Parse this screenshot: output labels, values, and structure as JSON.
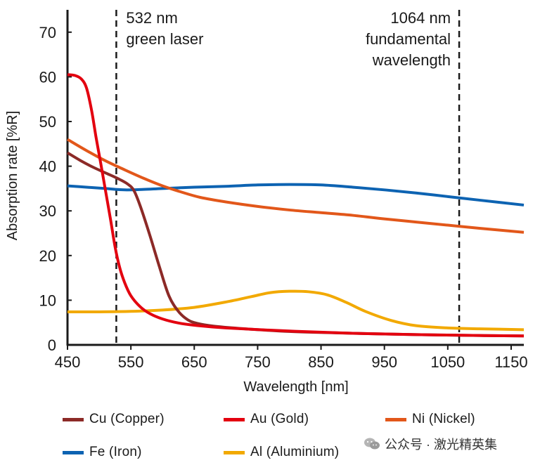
{
  "chart_data": {
    "type": "line",
    "xlabel": "Wavelength [nm]",
    "ylabel": "Absorption rate [%R]",
    "xlim": [
      450,
      1170
    ],
    "ylim": [
      0,
      75
    ],
    "xticks": [
      450,
      550,
      650,
      750,
      850,
      950,
      1050,
      1150
    ],
    "yticks": [
      0,
      10,
      20,
      30,
      40,
      50,
      60,
      70
    ],
    "grid": false,
    "legend_position": "bottom",
    "annotations": [
      {
        "x": 527,
        "line1": "532 nm",
        "line2": "green laser",
        "line3": ""
      },
      {
        "x": 1068,
        "line1": "1064 nm",
        "line2": "fundamental",
        "line3": "wavelength"
      }
    ],
    "series": [
      {
        "name": "Cu (Copper)",
        "color": "#8c2a27",
        "x": [
          450,
          470,
          490,
          510,
          530,
          545,
          555,
          565,
          580,
          595,
          610,
          625,
          640,
          655,
          680,
          720,
          800,
          900,
          1000,
          1100,
          1170
        ],
        "y": [
          43,
          41.3,
          39.8,
          38.5,
          37.2,
          36,
          34.5,
          31,
          24.5,
          17.5,
          11,
          7.5,
          5.6,
          4.8,
          4.2,
          3.7,
          3,
          2.6,
          2.3,
          2.1,
          2
        ]
      },
      {
        "name": "Au (Gold)",
        "color": "#e3000f",
        "x": [
          450,
          462,
          472,
          480,
          488,
          495,
          502,
          510,
          518,
          525,
          532,
          540,
          550,
          565,
          580,
          600,
          625,
          650,
          700,
          800,
          900,
          1000,
          1100,
          1170
        ],
        "y": [
          60.5,
          60.3,
          59.5,
          57.5,
          52.5,
          46.5,
          41,
          34.5,
          28,
          22,
          17.5,
          14,
          11,
          8.5,
          7,
          5.8,
          4.9,
          4.4,
          3.8,
          3.1,
          2.6,
          2.3,
          2.1,
          2
        ]
      },
      {
        "name": "Ni (Nickel)",
        "color": "#e2571a",
        "x": [
          450,
          480,
          510,
          540,
          570,
          600,
          630,
          660,
          700,
          750,
          800,
          850,
          900,
          950,
          1000,
          1050,
          1100,
          1170
        ],
        "y": [
          46,
          43.5,
          41.2,
          39.2,
          37.3,
          35.6,
          34.2,
          33,
          32,
          31,
          30.2,
          29.6,
          29,
          28.2,
          27.5,
          26.8,
          26.1,
          25.2
        ]
      },
      {
        "name": "Fe (Iron)",
        "color": "#0d63b2",
        "x": [
          450,
          480,
          510,
          540,
          570,
          600,
          650,
          700,
          750,
          800,
          850,
          900,
          950,
          1000,
          1050,
          1100,
          1170
        ],
        "y": [
          35.6,
          35.3,
          35,
          34.7,
          34.8,
          35,
          35.3,
          35.5,
          35.8,
          35.9,
          35.8,
          35.3,
          34.7,
          34,
          33.2,
          32.4,
          31.3
        ]
      },
      {
        "name": "Al (Aluminium)",
        "color": "#f2a900",
        "x": [
          450,
          500,
          550,
          600,
          650,
          700,
          740,
          770,
          800,
          830,
          860,
          890,
          920,
          960,
          1000,
          1050,
          1100,
          1170
        ],
        "y": [
          7.4,
          7.4,
          7.5,
          7.8,
          8.4,
          9.6,
          10.8,
          11.7,
          12,
          11.9,
          11.2,
          9.5,
          7.5,
          5.5,
          4.3,
          3.8,
          3.6,
          3.4
        ]
      }
    ]
  },
  "watermark": {
    "text": "公众号 · 激光精英集",
    "icon": "wechat-icon"
  }
}
